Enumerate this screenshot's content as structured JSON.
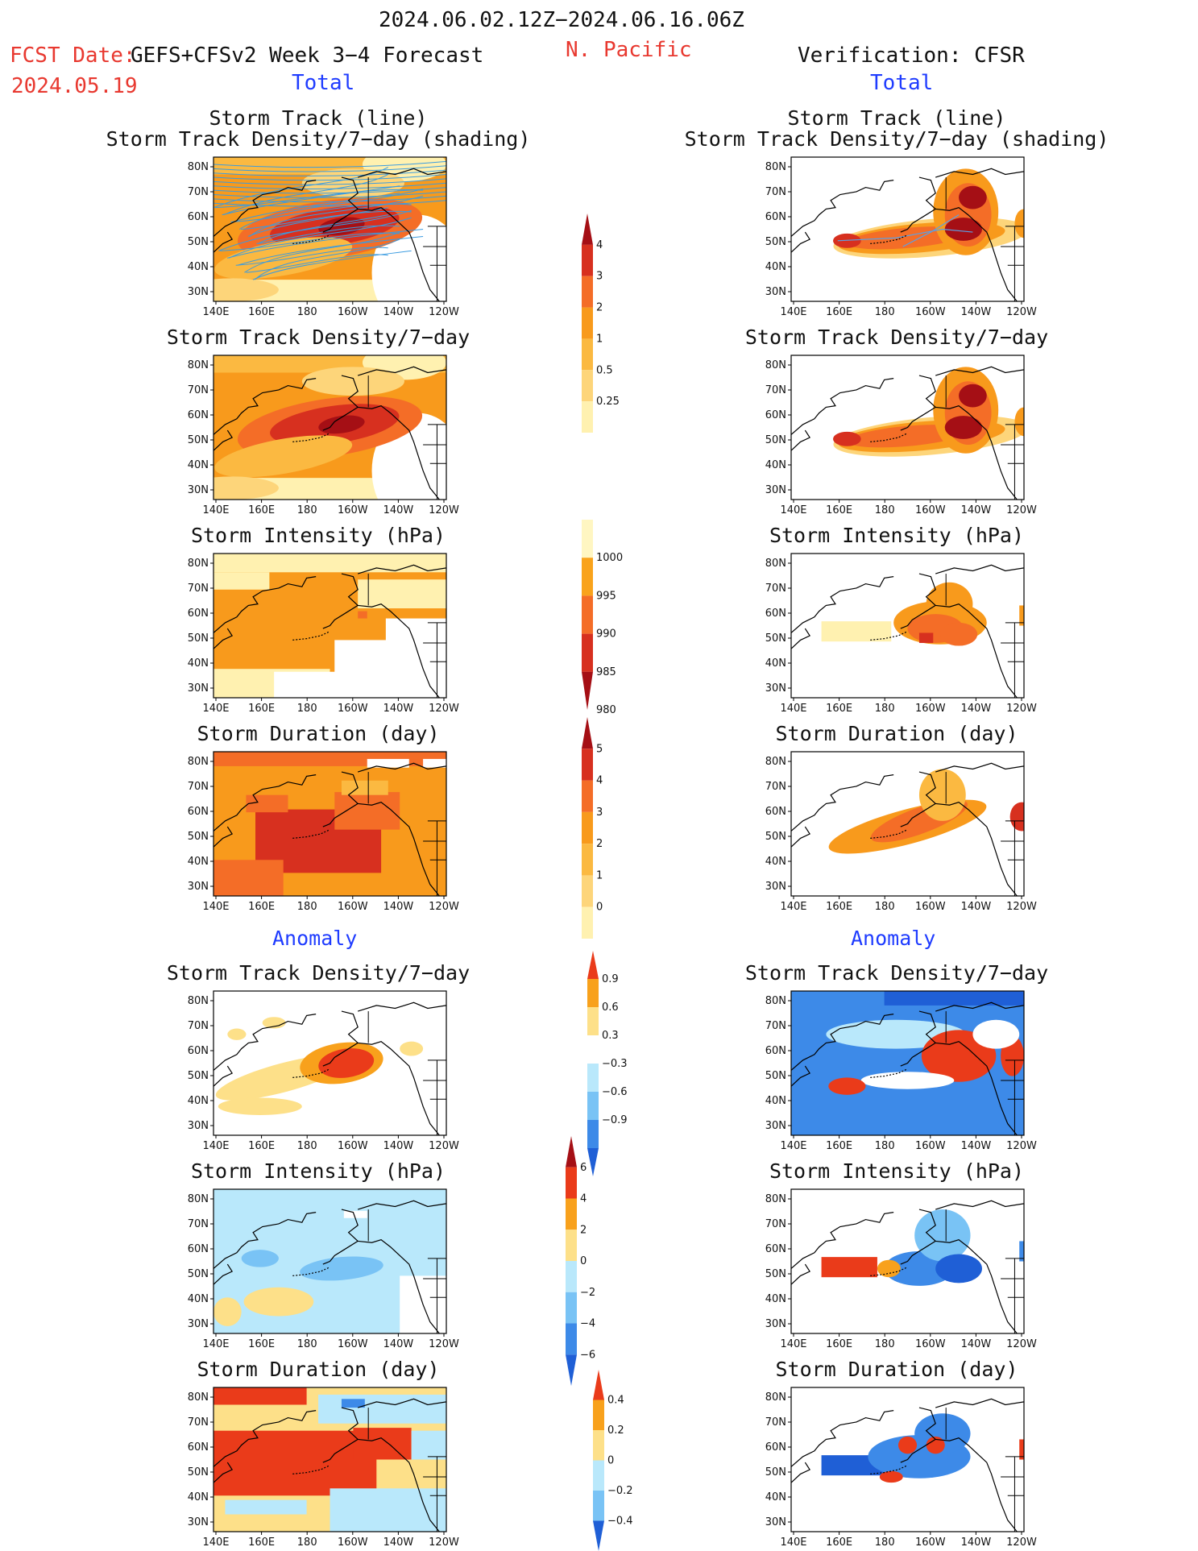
{
  "header": {
    "date_range": "2024.06.02.12Z−2024.06.16.06Z",
    "region": "N. Pacific",
    "fcst_prefix": "FCST Date:",
    "fcst_model": "GEFS+CFSv2 Week 3−4 Forecast",
    "fcst_date": "2024.05.19",
    "verification": "Verification: CFSR",
    "total_left": "Total",
    "total_right": "Total",
    "anomaly_left": "Anomaly",
    "anomaly_right": "Anomaly"
  },
  "titles": {
    "track_line": "Storm Track (line)",
    "track_shading": "Storm Track Density/7−day (shading)",
    "density": "Storm Track Density/7−day",
    "intensity": "Storm Intensity (hPa)",
    "duration": "Storm Duration (day)"
  },
  "axes": {
    "lat_labels": [
      "80N",
      "70N",
      "60N",
      "50N",
      "40N",
      "30N"
    ],
    "lon_labels": [
      "140E",
      "160E",
      "180",
      "160W",
      "140W",
      "120W"
    ]
  },
  "colorbars": {
    "density_total": {
      "labels": [
        "4",
        "3",
        "2",
        "1",
        "0.5",
        "0.25"
      ],
      "colors": [
        "#a50f15",
        "#d7301f",
        "#f46d27",
        "#f89a1c",
        "#fbb941",
        "#fdd57a",
        "#fff1b0"
      ]
    },
    "intensity_total": {
      "labels": [
        "1000",
        "995",
        "990",
        "985",
        "980"
      ],
      "colors": [
        "#fff6c2",
        "#f9a31c",
        "#f46d27",
        "#d7301f",
        "#a50f15"
      ]
    },
    "duration_total": {
      "labels": [
        "5",
        "4",
        "3",
        "2",
        "1",
        "0"
      ],
      "colors": [
        "#a50f15",
        "#d7301f",
        "#f46d27",
        "#f89a1c",
        "#fbb941",
        "#fdd57a",
        "#fff1b0"
      ]
    },
    "density_anom": {
      "labels": [
        "0.9",
        "0.6",
        "0.3",
        "−0.3",
        "−0.6",
        "−0.9"
      ],
      "colors": [
        "#ea3b1a",
        "#f8a11c",
        "#fde089",
        "#ffffff",
        "#b9e8fb",
        "#79c3f5",
        "#3d8ae8",
        "#1f5fd6"
      ]
    },
    "intensity_anom": {
      "labels": [
        "6",
        "4",
        "2",
        "0",
        "−2",
        "−4",
        "−6"
      ],
      "colors": [
        "#a50f15",
        "#ea3b1a",
        "#f8a11c",
        "#fde089",
        "#b9e8fb",
        "#79c3f5",
        "#3d8ae8",
        "#1f5fd6"
      ]
    },
    "duration_anom": {
      "labels": [
        "0.4",
        "0.2",
        "0",
        "−0.2",
        "−0.4"
      ],
      "colors": [
        "#ea3b1a",
        "#f8a11c",
        "#fde089",
        "#b9e8fb",
        "#79c3f5",
        "#1f5fd6"
      ]
    }
  }
}
